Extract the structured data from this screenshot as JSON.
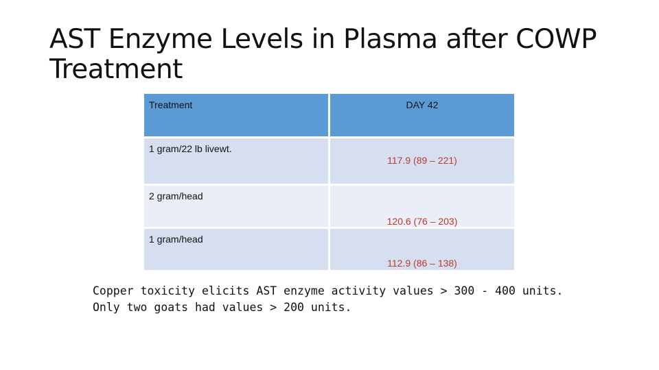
{
  "slide": {
    "title": "AST Enzyme Levels in Plasma after COWP Treatment"
  },
  "table": {
    "headers": [
      "Treatment",
      "DAY 42"
    ],
    "rows": [
      {
        "treatment": "1 gram/22 lb livewt.",
        "day42": "117.9 (89 – 221)"
      },
      {
        "treatment": "2 gram/head",
        "day42": "120.6 (76 – 203)"
      },
      {
        "treatment": "1 gram/head",
        "day42": "112.9 (86 – 138)"
      }
    ],
    "colors": {
      "header_bg": "#5b9bd5",
      "row_dark_bg": "#d5dff0",
      "row_light_bg": "#e9eef7",
      "value_text": "#c0392b"
    }
  },
  "notes": [
    "Copper toxicity elicits AST enzyme activity values > 300 - 400 units.",
    "Only two goats had values > 200 units."
  ]
}
